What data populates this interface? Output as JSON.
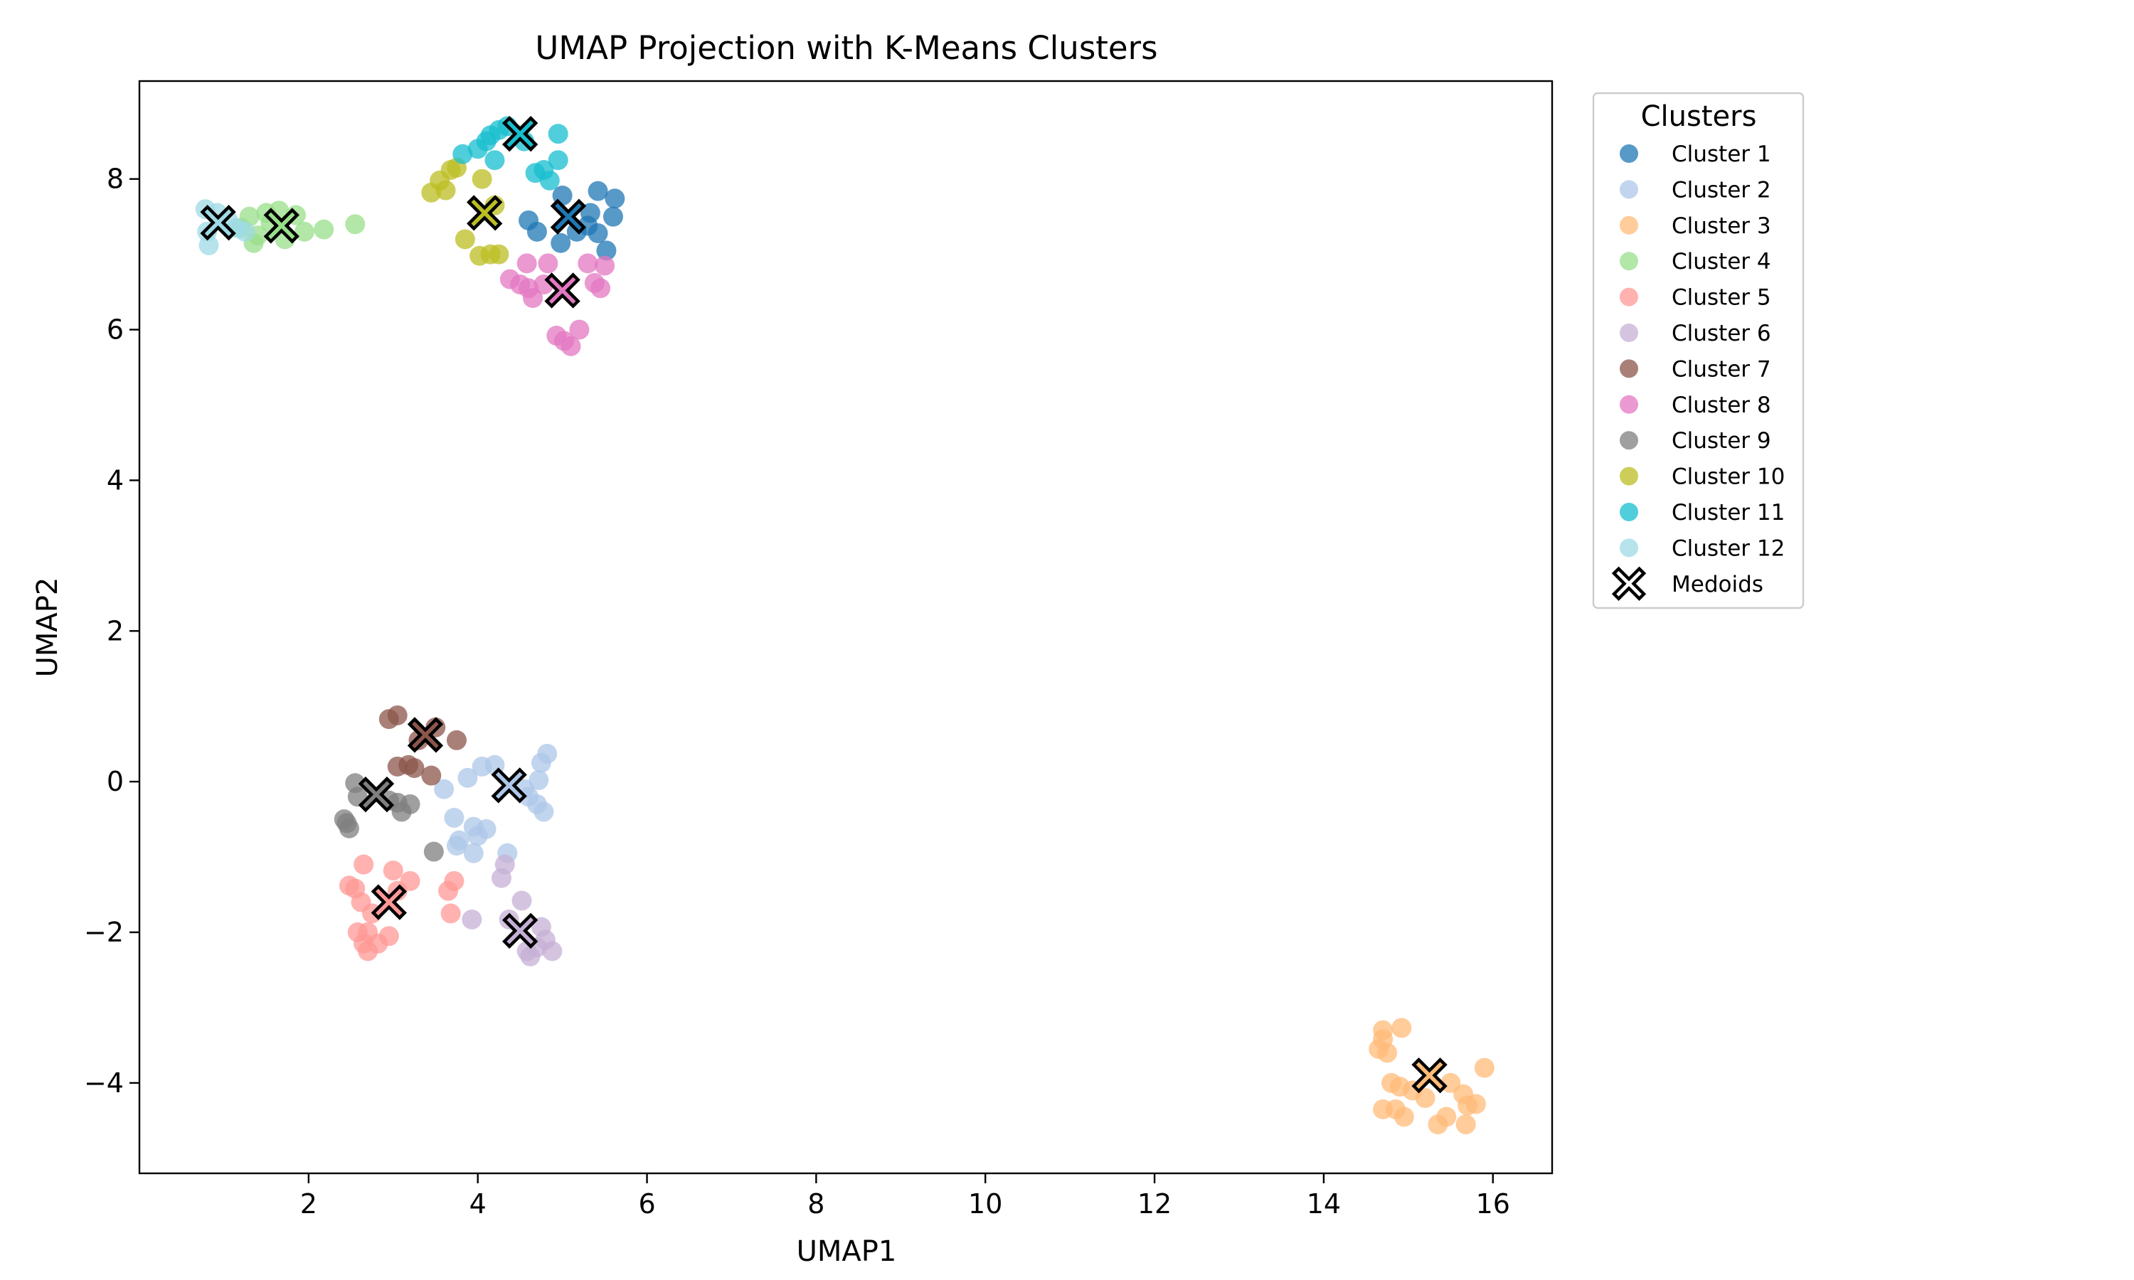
{
  "chart_data": {
    "type": "scatter",
    "title": "UMAP Projection with K-Means Clusters",
    "xlabel": "UMAP1",
    "ylabel": "UMAP2",
    "xlim": [
      0.0,
      16.7
    ],
    "ylim": [
      -5.2,
      9.3
    ],
    "x_ticks": [
      2,
      4,
      6,
      8,
      10,
      12,
      14,
      16
    ],
    "y_ticks": [
      -4,
      -2,
      0,
      2,
      4,
      6,
      8
    ],
    "x_tick_labels": [
      "2",
      "4",
      "6",
      "8",
      "10",
      "12",
      "14",
      "16"
    ],
    "y_tick_labels": [
      "−4",
      "−2",
      "0",
      "2",
      "4",
      "6",
      "8"
    ],
    "grid": false,
    "legend": {
      "title": "Clusters",
      "placement": "outside-right-top",
      "medoid_label": "Medoids"
    },
    "marker_opacity": 0.75,
    "series": [
      {
        "name": "Cluster 1",
        "color": "#1f77b4",
        "medoid": [
          5.07,
          7.5
        ],
        "points": [
          [
            5.0,
            7.78
          ],
          [
            5.42,
            7.84
          ],
          [
            5.62,
            7.74
          ],
          [
            5.6,
            7.5
          ],
          [
            5.33,
            7.55
          ],
          [
            5.42,
            7.28
          ],
          [
            5.52,
            7.05
          ],
          [
            5.17,
            7.3
          ],
          [
            4.98,
            7.15
          ],
          [
            4.7,
            7.3
          ],
          [
            4.6,
            7.45
          ],
          [
            5.3,
            7.38
          ]
        ]
      },
      {
        "name": "Cluster 2",
        "color": "#aec7e8",
        "medoid": [
          4.37,
          -0.05
        ],
        "points": [
          [
            4.2,
            0.22
          ],
          [
            4.05,
            0.2
          ],
          [
            4.82,
            0.37
          ],
          [
            4.75,
            0.25
          ],
          [
            4.72,
            0.02
          ],
          [
            4.55,
            -0.1
          ],
          [
            4.7,
            -0.3
          ],
          [
            4.78,
            -0.4
          ],
          [
            3.88,
            0.05
          ],
          [
            3.6,
            -0.1
          ],
          [
            3.72,
            -0.48
          ],
          [
            3.95,
            -0.6
          ],
          [
            4.1,
            -0.63
          ],
          [
            4.0,
            -0.72
          ],
          [
            3.78,
            -0.78
          ],
          [
            3.95,
            -0.95
          ],
          [
            4.35,
            -0.95
          ],
          [
            3.75,
            -0.85
          ],
          [
            4.6,
            -0.2
          ]
        ]
      },
      {
        "name": "Cluster 3",
        "color": "#ffbb78",
        "medoid": [
          15.25,
          -3.9
        ],
        "points": [
          [
            14.7,
            -3.3
          ],
          [
            14.92,
            -3.27
          ],
          [
            14.65,
            -3.55
          ],
          [
            14.75,
            -3.6
          ],
          [
            14.7,
            -3.42
          ],
          [
            14.8,
            -4.0
          ],
          [
            14.9,
            -4.05
          ],
          [
            15.05,
            -4.1
          ],
          [
            14.85,
            -4.35
          ],
          [
            14.95,
            -4.45
          ],
          [
            14.7,
            -4.35
          ],
          [
            15.5,
            -4.0
          ],
          [
            15.65,
            -4.15
          ],
          [
            15.7,
            -4.3
          ],
          [
            15.8,
            -4.28
          ],
          [
            15.45,
            -4.45
          ],
          [
            15.35,
            -4.55
          ],
          [
            15.68,
            -4.55
          ],
          [
            15.9,
            -3.8
          ],
          [
            15.2,
            -4.2
          ]
        ]
      },
      {
        "name": "Cluster 4",
        "color": "#98df8a",
        "medoid": [
          1.68,
          7.38
        ],
        "points": [
          [
            1.3,
            7.5
          ],
          [
            1.5,
            7.55
          ],
          [
            1.65,
            7.58
          ],
          [
            1.85,
            7.52
          ],
          [
            2.18,
            7.33
          ],
          [
            2.55,
            7.4
          ],
          [
            1.4,
            7.25
          ],
          [
            1.35,
            7.15
          ],
          [
            1.72,
            7.2
          ],
          [
            1.95,
            7.3
          ],
          [
            1.55,
            7.42
          ],
          [
            1.2,
            7.35
          ]
        ]
      },
      {
        "name": "Cluster 5",
        "color": "#ff9896",
        "medoid": [
          2.95,
          -1.6
        ],
        "points": [
          [
            2.48,
            -1.38
          ],
          [
            2.55,
            -1.42
          ],
          [
            2.65,
            -1.1
          ],
          [
            2.62,
            -1.6
          ],
          [
            3.0,
            -1.18
          ],
          [
            3.2,
            -1.32
          ],
          [
            3.72,
            -1.32
          ],
          [
            3.65,
            -1.45
          ],
          [
            3.68,
            -1.75
          ],
          [
            2.7,
            -2.0
          ],
          [
            2.65,
            -2.15
          ],
          [
            2.7,
            -2.25
          ],
          [
            2.82,
            -2.15
          ],
          [
            2.95,
            -2.05
          ],
          [
            2.75,
            -1.75
          ],
          [
            3.05,
            -1.45
          ],
          [
            2.58,
            -2.0
          ]
        ]
      },
      {
        "name": "Cluster 6",
        "color": "#c5b0d5",
        "medoid": [
          4.5,
          -1.98
        ],
        "points": [
          [
            4.32,
            -1.1
          ],
          [
            4.28,
            -1.28
          ],
          [
            4.52,
            -1.58
          ],
          [
            3.93,
            -1.83
          ],
          [
            4.37,
            -1.83
          ],
          [
            4.75,
            -1.93
          ],
          [
            4.8,
            -2.1
          ],
          [
            4.7,
            -2.2
          ],
          [
            4.88,
            -2.25
          ],
          [
            4.62,
            -2.32
          ],
          [
            4.58,
            -2.25
          ]
        ]
      },
      {
        "name": "Cluster 7",
        "color": "#8c564b",
        "medoid": [
          3.38,
          0.62
        ],
        "points": [
          [
            2.95,
            0.83
          ],
          [
            3.05,
            0.88
          ],
          [
            3.5,
            0.72
          ],
          [
            3.75,
            0.55
          ],
          [
            3.18,
            0.22
          ],
          [
            3.25,
            0.18
          ],
          [
            3.05,
            0.2
          ],
          [
            3.45,
            0.08
          ],
          [
            3.3,
            0.55
          ]
        ]
      },
      {
        "name": "Cluster 8",
        "color": "#e377c2",
        "medoid": [
          5.0,
          6.52
        ],
        "points": [
          [
            4.38,
            6.67
          ],
          [
            4.5,
            6.6
          ],
          [
            4.6,
            6.55
          ],
          [
            4.65,
            6.42
          ],
          [
            4.58,
            6.88
          ],
          [
            4.83,
            6.88
          ],
          [
            5.3,
            6.88
          ],
          [
            5.5,
            6.85
          ],
          [
            5.38,
            6.62
          ],
          [
            5.45,
            6.55
          ],
          [
            5.2,
            6.0
          ],
          [
            4.93,
            5.92
          ],
          [
            5.02,
            5.85
          ],
          [
            5.1,
            5.78
          ],
          [
            4.78,
            6.6
          ]
        ]
      },
      {
        "name": "Cluster 9",
        "color": "#7f7f7f",
        "medoid": [
          2.8,
          -0.17
        ],
        "points": [
          [
            2.55,
            -0.02
          ],
          [
            2.58,
            -0.2
          ],
          [
            2.42,
            -0.5
          ],
          [
            2.48,
            -0.62
          ],
          [
            2.45,
            -0.55
          ],
          [
            3.1,
            -0.4
          ],
          [
            3.2,
            -0.3
          ],
          [
            3.05,
            -0.28
          ],
          [
            3.48,
            -0.93
          ],
          [
            2.95,
            -0.25
          ]
        ]
      },
      {
        "name": "Cluster 10",
        "color": "#bcbd22",
        "medoid": [
          4.08,
          7.55
        ],
        "points": [
          [
            3.45,
            7.82
          ],
          [
            3.55,
            7.98
          ],
          [
            3.68,
            8.12
          ],
          [
            3.75,
            8.15
          ],
          [
            3.62,
            7.85
          ],
          [
            4.05,
            8.0
          ],
          [
            3.85,
            7.2
          ],
          [
            4.02,
            6.98
          ],
          [
            4.15,
            7.0
          ],
          [
            4.25,
            7.0
          ],
          [
            4.2,
            7.65
          ]
        ]
      },
      {
        "name": "Cluster 11",
        "color": "#17becf",
        "medoid": [
          4.5,
          8.6
        ],
        "points": [
          [
            3.82,
            8.33
          ],
          [
            4.0,
            8.4
          ],
          [
            4.1,
            8.5
          ],
          [
            4.15,
            8.58
          ],
          [
            4.25,
            8.65
          ],
          [
            4.35,
            8.7
          ],
          [
            4.2,
            8.25
          ],
          [
            4.95,
            8.6
          ],
          [
            4.68,
            8.08
          ],
          [
            4.78,
            8.12
          ],
          [
            4.85,
            7.98
          ],
          [
            4.95,
            8.25
          ],
          [
            4.55,
            8.5
          ]
        ]
      },
      {
        "name": "Cluster 12",
        "color": "#9edae5",
        "medoid": [
          0.93,
          7.42
        ],
        "points": [
          [
            0.78,
            7.6
          ],
          [
            0.8,
            7.3
          ],
          [
            0.82,
            7.12
          ],
          [
            1.05,
            7.45
          ],
          [
            1.15,
            7.35
          ],
          [
            1.25,
            7.3
          ],
          [
            0.92,
            7.55
          ]
        ]
      }
    ]
  }
}
